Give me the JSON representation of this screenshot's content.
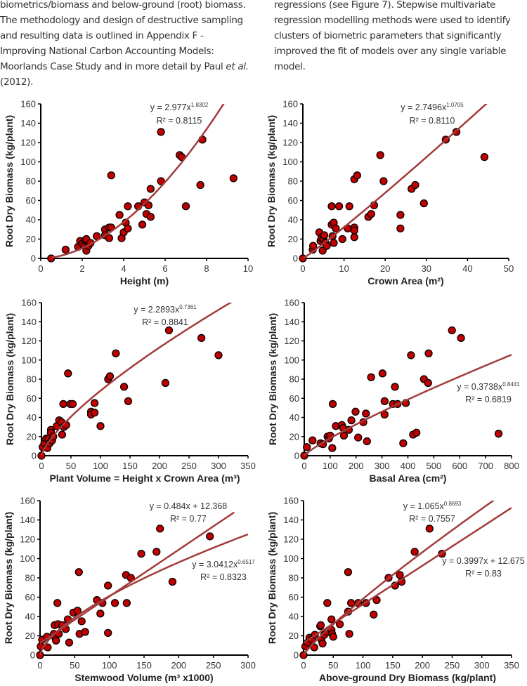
{
  "text": {
    "left_lines": [
      "biometrics/biomass and below-ground (root) biomass.",
      "The methodology and design of destructive sampling",
      "and resulting data is outlined in Appendix F -",
      "Improving National Carbon Accounting Models:",
      "Moorlands Case Study and in more detail by Paul ",
      "(2012)."
    ],
    "left_italic": "et al.",
    "right_lines": [
      "regressions (see Figure 7). Stepwise multivariate",
      "regression modelling methods were used to identify",
      "clusters of biometric parameters that significantly",
      "improved the fit of models over any single variable",
      "model."
    ]
  },
  "colors": {
    "point": "#c00000",
    "trend": "#a33b3b",
    "axis": "#000000"
  },
  "chart_data": [
    {
      "type": "scatter",
      "xlabel": "Height (m)",
      "ylabel": "Root Dry Biomass (kg/plant)",
      "xlim": [
        0,
        10
      ],
      "ylim": [
        0,
        160
      ],
      "xticks": [
        0,
        2,
        4,
        6,
        8,
        10
      ],
      "yticks": [
        0,
        20,
        40,
        60,
        80,
        100,
        120,
        140,
        160
      ],
      "points": [
        [
          0.5,
          0
        ],
        [
          1.2,
          9
        ],
        [
          1.8,
          12
        ],
        [
          1.9,
          18
        ],
        [
          2,
          15
        ],
        [
          2.1,
          13
        ],
        [
          2.15,
          19
        ],
        [
          2.2,
          20
        ],
        [
          2.2,
          8
        ],
        [
          2.3,
          13
        ],
        [
          2.4,
          16
        ],
        [
          2.7,
          23
        ],
        [
          3.1,
          30
        ],
        [
          3.1,
          24
        ],
        [
          3.3,
          32
        ],
        [
          3.3,
          21
        ],
        [
          3.4,
          86
        ],
        [
          3.4,
          32
        ],
        [
          3.8,
          45
        ],
        [
          3.9,
          21
        ],
        [
          4.0,
          27
        ],
        [
          4.1,
          37
        ],
        [
          4.2,
          31
        ],
        [
          4.2,
          54
        ],
        [
          4.7,
          54
        ],
        [
          4.9,
          35
        ],
        [
          5.0,
          58
        ],
        [
          5.1,
          46
        ],
        [
          5.2,
          55
        ],
        [
          5.3,
          43
        ],
        [
          5.3,
          72
        ],
        [
          5.8,
          131
        ],
        [
          5.8,
          80
        ],
        [
          6.7,
          107
        ],
        [
          6.8,
          105
        ],
        [
          7.0,
          54
        ],
        [
          7.7,
          76
        ],
        [
          7.8,
          123
        ],
        [
          9.3,
          83
        ]
      ],
      "trendlines": [
        {
          "kind": "power",
          "a": 2.977,
          "b": 1.8302,
          "x_range": [
            0.5,
            10
          ],
          "eq": "y = 2.977x",
          "eq_exp": "1.8302",
          "r2": "R² = 0.8115"
        }
      ]
    },
    {
      "type": "scatter",
      "xlabel": "Crown Area (m²)",
      "ylabel": "Root Dry Biomass (kg/plant)",
      "xlim": [
        0,
        50
      ],
      "ylim": [
        0,
        160
      ],
      "xticks": [
        0,
        10,
        20,
        30,
        40,
        50
      ],
      "yticks": [
        0,
        20,
        40,
        60,
        80,
        100,
        120,
        140,
        160
      ],
      "points": [
        [
          0,
          0
        ],
        [
          2.4,
          9
        ],
        [
          2.5,
          13
        ],
        [
          4,
          27
        ],
        [
          4.3,
          18
        ],
        [
          4.5,
          21
        ],
        [
          4.8,
          8
        ],
        [
          5,
          20
        ],
        [
          5.2,
          24
        ],
        [
          5.5,
          16
        ],
        [
          5.8,
          13
        ],
        [
          7,
          54
        ],
        [
          7,
          35
        ],
        [
          7.2,
          23
        ],
        [
          7.5,
          37
        ],
        [
          7.5,
          16
        ],
        [
          8,
          31
        ],
        [
          8.8,
          54
        ],
        [
          9.6,
          20
        ],
        [
          10.9,
          31
        ],
        [
          11.3,
          54
        ],
        [
          12.5,
          82
        ],
        [
          12.5,
          32
        ],
        [
          12.5,
          29
        ],
        [
          12.5,
          22
        ],
        [
          13.2,
          86
        ],
        [
          15.9,
          43
        ],
        [
          16.6,
          46
        ],
        [
          17.3,
          55
        ],
        [
          18.8,
          107
        ],
        [
          19.6,
          80
        ],
        [
          23.7,
          45
        ],
        [
          23.7,
          31
        ],
        [
          26.4,
          72
        ],
        [
          27.3,
          76
        ],
        [
          29.4,
          57
        ],
        [
          34.7,
          123
        ],
        [
          37.3,
          131
        ],
        [
          44.1,
          105
        ]
      ],
      "trendlines": [
        {
          "kind": "power",
          "a": 2.7496,
          "b": 1.0705,
          "x_range": [
            0,
            50
          ],
          "eq": "y = 2.7496x",
          "eq_exp": "1.0705",
          "r2": "R² = 0.8110"
        }
      ]
    },
    {
      "type": "scatter",
      "xlabel": "Plant Volume = Height x Crown Area (m³)",
      "ylabel": "Root Dry Biomass (kg/plant)",
      "xlim": [
        0,
        350
      ],
      "ylim": [
        0,
        160
      ],
      "xticks": [
        0,
        50,
        100,
        150,
        200,
        250,
        300,
        350
      ],
      "yticks": [
        0,
        20,
        40,
        60,
        80,
        100,
        120,
        140,
        160
      ],
      "points": [
        [
          0,
          0
        ],
        [
          2,
          9
        ],
        [
          5,
          13
        ],
        [
          8,
          18
        ],
        [
          10,
          8
        ],
        [
          12,
          18
        ],
        [
          14,
          13
        ],
        [
          16,
          27
        ],
        [
          16,
          24
        ],
        [
          18,
          16
        ],
        [
          20,
          20
        ],
        [
          26,
          31
        ],
        [
          30,
          37
        ],
        [
          34,
          35
        ],
        [
          35,
          22
        ],
        [
          37,
          54
        ],
        [
          38,
          30
        ],
        [
          42,
          32
        ],
        [
          45,
          86
        ],
        [
          49,
          54
        ],
        [
          53,
          54
        ],
        [
          84,
          46
        ],
        [
          84,
          43
        ],
        [
          90,
          55
        ],
        [
          90,
          45
        ],
        [
          100,
          31
        ],
        [
          113,
          80
        ],
        [
          116,
          83
        ],
        [
          126,
          107
        ],
        [
          140,
          72
        ],
        [
          147,
          57
        ],
        [
          210,
          76
        ],
        [
          216,
          131
        ],
        [
          271,
          123
        ],
        [
          300,
          105
        ]
      ],
      "trendlines": [
        {
          "kind": "power",
          "a": 2.2893,
          "b": 0.7361,
          "x_range": [
            0,
            350
          ],
          "eq": "y = 2.2893x",
          "eq_exp": "0.7361",
          "r2": "R² = 0.8841"
        }
      ]
    },
    {
      "type": "scatter",
      "xlabel": "Basal Area (cm²)",
      "ylabel": "Root Dry Biomass (kg/plant)",
      "xlim": [
        0,
        800
      ],
      "ylim": [
        0,
        160
      ],
      "xticks": [
        0,
        100,
        200,
        300,
        400,
        500,
        600,
        700,
        800
      ],
      "yticks": [
        0,
        20,
        40,
        60,
        80,
        100,
        120,
        140,
        160
      ],
      "points": [
        [
          0,
          0
        ],
        [
          10,
          9
        ],
        [
          32,
          16
        ],
        [
          63,
          13
        ],
        [
          72,
          12
        ],
        [
          90,
          20
        ],
        [
          95,
          18
        ],
        [
          100,
          21
        ],
        [
          108,
          8
        ],
        [
          110,
          54
        ],
        [
          122,
          31
        ],
        [
          145,
          32
        ],
        [
          150,
          29
        ],
        [
          153,
          21
        ],
        [
          172,
          27
        ],
        [
          182,
          37
        ],
        [
          198,
          46
        ],
        [
          208,
          19
        ],
        [
          228,
          35
        ],
        [
          238,
          44
        ],
        [
          242,
          15
        ],
        [
          258,
          82
        ],
        [
          302,
          86
        ],
        [
          310,
          57
        ],
        [
          310,
          43
        ],
        [
          342,
          54
        ],
        [
          350,
          72
        ],
        [
          360,
          54
        ],
        [
          382,
          13
        ],
        [
          392,
          55
        ],
        [
          412,
          105
        ],
        [
          420,
          22
        ],
        [
          433,
          24
        ],
        [
          462,
          80
        ],
        [
          478,
          76
        ],
        [
          480,
          107
        ],
        [
          570,
          131
        ],
        [
          605,
          123
        ],
        [
          750,
          23
        ]
      ],
      "trendlines": [
        {
          "kind": "power",
          "a": 0.3738,
          "b": 0.8441,
          "x_range": [
            0,
            800
          ],
          "eq": "y = 0.3738x",
          "eq_exp": "0.8441",
          "r2": "R² = 0.6819"
        }
      ]
    },
    {
      "type": "scatter",
      "xlabel": "Stemwood Volume (m³ x1000)",
      "ylabel": "Root Dry Biomass (kg/plant)",
      "xlim": [
        0,
        300
      ],
      "ylim": [
        0,
        160
      ],
      "xticks": [
        0,
        50,
        100,
        150,
        200,
        250,
        300
      ],
      "yticks": [
        0,
        20,
        40,
        60,
        80,
        100,
        120,
        140,
        160
      ],
      "points": [
        [
          0,
          0
        ],
        [
          1,
          9
        ],
        [
          3,
          16
        ],
        [
          10,
          19
        ],
        [
          11,
          8
        ],
        [
          20,
          22
        ],
        [
          21,
          31
        ],
        [
          22,
          18
        ],
        [
          23,
          15
        ],
        [
          25,
          54
        ],
        [
          26,
          32
        ],
        [
          27,
          22
        ],
        [
          32,
          31
        ],
        [
          37,
          27
        ],
        [
          40,
          37
        ],
        [
          42,
          13
        ],
        [
          48,
          44
        ],
        [
          54,
          46
        ],
        [
          56,
          86
        ],
        [
          57,
          22
        ],
        [
          60,
          35
        ],
        [
          65,
          24
        ],
        [
          82,
          57
        ],
        [
          87,
          43
        ],
        [
          90,
          54
        ],
        [
          98,
          72
        ],
        [
          98,
          23
        ],
        [
          108,
          54
        ],
        [
          124,
          83
        ],
        [
          125,
          54
        ],
        [
          131,
          80
        ],
        [
          146,
          105
        ],
        [
          168,
          107
        ],
        [
          173,
          131
        ],
        [
          191,
          76
        ],
        [
          245,
          123
        ]
      ],
      "trendlines": [
        {
          "kind": "linear",
          "a": 0.484,
          "b": 12.368,
          "x_range": [
            0,
            280
          ],
          "eq": "y = 0.484x + 12.368",
          "eq_exp": "",
          "r2": "R² = 0.77"
        },
        {
          "kind": "power",
          "a": 3.0412,
          "b": 0.6517,
          "x_range": [
            0,
            300
          ],
          "eq": "y = 3.0412x",
          "eq_exp": "0.6517",
          "r2": "R² = 0.8323"
        }
      ]
    },
    {
      "type": "scatter",
      "xlabel": "Above-ground Dry Biomass (kg/plant)",
      "ylabel": "Root Dry Biomass (kg/plant)",
      "xlim": [
        0,
        350
      ],
      "ylim": [
        0,
        160
      ],
      "xticks": [
        0,
        50,
        100,
        150,
        200,
        250,
        300,
        350
      ],
      "yticks": [
        0,
        20,
        40,
        60,
        80,
        100,
        120,
        140,
        160
      ],
      "points": [
        [
          0,
          0
        ],
        [
          3,
          9
        ],
        [
          7,
          13
        ],
        [
          10,
          18
        ],
        [
          14,
          16
        ],
        [
          18,
          8
        ],
        [
          19,
          21
        ],
        [
          28,
          30
        ],
        [
          29,
          31
        ],
        [
          30,
          16
        ],
        [
          32,
          12
        ],
        [
          35,
          21
        ],
        [
          40,
          24
        ],
        [
          40,
          54
        ],
        [
          47,
          37
        ],
        [
          47,
          26
        ],
        [
          48,
          22
        ],
        [
          50,
          19
        ],
        [
          61,
          32
        ],
        [
          75,
          45
        ],
        [
          75,
          86
        ],
        [
          77,
          22
        ],
        [
          80,
          54
        ],
        [
          92,
          54
        ],
        [
          105,
          54
        ],
        [
          118,
          42
        ],
        [
          123,
          57
        ],
        [
          143,
          80
        ],
        [
          154,
          72
        ],
        [
          162,
          83
        ],
        [
          165,
          76
        ],
        [
          187,
          107
        ],
        [
          212,
          131
        ],
        [
          233,
          105
        ]
      ],
      "trendlines": [
        {
          "kind": "power",
          "a": 1.065,
          "b": 0.8693,
          "x_range": [
            0,
            350
          ],
          "eq": "y = 1.065x",
          "eq_exp": "0.8693",
          "r2": "R² = 0.7557"
        },
        {
          "kind": "linear",
          "a": 0.3997,
          "b": 12.675,
          "x_range": [
            0,
            350
          ],
          "eq": "y = 0.3997x + 12.675",
          "eq_exp": "",
          "r2": "R² = 0.83"
        }
      ]
    }
  ]
}
